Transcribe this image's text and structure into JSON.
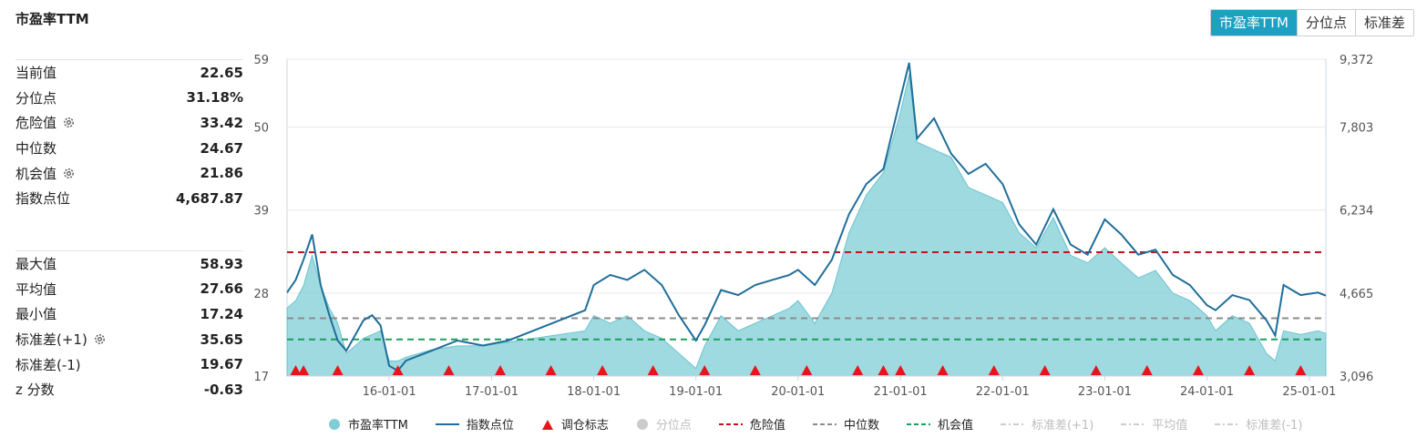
{
  "title": "市盈率TTM",
  "tabs": [
    {
      "label": "市盈率TTM",
      "active": true
    },
    {
      "label": "分位点",
      "active": false
    },
    {
      "label": "标准差",
      "active": false
    }
  ],
  "stats_top": [
    {
      "label": "当前值",
      "value": "22.65",
      "gear": false
    },
    {
      "label": "分位点",
      "value": "31.18%",
      "gear": false
    },
    {
      "label": "危险值",
      "value": "33.42",
      "gear": true
    },
    {
      "label": "中位数",
      "value": "24.67",
      "gear": false
    },
    {
      "label": "机会值",
      "value": "21.86",
      "gear": true
    },
    {
      "label": "指数点位",
      "value": "4,687.87",
      "gear": false
    }
  ],
  "stats_bottom": [
    {
      "label": "最大值",
      "value": "58.93",
      "gear": false
    },
    {
      "label": "平均值",
      "value": "27.66",
      "gear": false
    },
    {
      "label": "最小值",
      "value": "17.24",
      "gear": false
    },
    {
      "label": "标准差(+1)",
      "value": "35.65",
      "gear": true
    },
    {
      "label": "标准差(-1)",
      "value": "19.67",
      "gear": false
    },
    {
      "label": "z 分数",
      "value": "-0.63",
      "gear": false
    }
  ],
  "legend": [
    {
      "label": "市盈率TTM",
      "symbol": "dot",
      "color": "#7fcdd6",
      "dim": false
    },
    {
      "label": "指数点位",
      "symbol": "line",
      "color": "#1f6e99",
      "dim": false
    },
    {
      "label": "调仓标志",
      "symbol": "triangle",
      "color": "#e8141c",
      "dim": false
    },
    {
      "label": "分位点",
      "symbol": "dot",
      "color": "#cccccc",
      "dim": true
    },
    {
      "label": "危险值",
      "symbol": "dash",
      "color": "#c0141c",
      "dim": false
    },
    {
      "label": "中位数",
      "symbol": "dash",
      "color": "#8c8c8c",
      "dim": false
    },
    {
      "label": "机会值",
      "symbol": "dash",
      "color": "#1aa05a",
      "dim": false
    },
    {
      "label": "标准差(+1)",
      "symbol": "dashdot",
      "color": "#cccccc",
      "dim": true
    },
    {
      "label": "平均值",
      "symbol": "dashdot",
      "color": "#cccccc",
      "dim": true
    },
    {
      "label": "标准差(-1)",
      "symbol": "dashdot",
      "color": "#cccccc",
      "dim": true
    }
  ],
  "chart_data": {
    "type": "area",
    "x_range": [
      "2015-01-01",
      "2025-03-01"
    ],
    "x_ticks": [
      "16-01-01",
      "17-01-01",
      "18-01-01",
      "19-01-01",
      "20-01-01",
      "21-01-01",
      "22-01-01",
      "23-01-01",
      "24-01-01",
      "25-01-01"
    ],
    "y_left": {
      "min": 17,
      "max": 59,
      "ticks": [
        17,
        28,
        39,
        50,
        59
      ]
    },
    "y_right": {
      "min": 3096,
      "max": 9372,
      "ticks": [
        "3,096",
        "4,665",
        "6,234",
        "7,803",
        "9,372"
      ]
    },
    "reference_lines": [
      {
        "name": "危险值",
        "value": 33.42,
        "color": "#c0141c"
      },
      {
        "name": "中位数",
        "value": 24.67,
        "color": "#8c8c8c"
      },
      {
        "name": "机会值",
        "value": 21.86,
        "color": "#1aa05a"
      }
    ],
    "series": [
      {
        "name": "市盈率TTM",
        "axis": "left",
        "color": "#7fcdd6",
        "points": [
          [
            "2015-01-01",
            26
          ],
          [
            "2015-02-01",
            27
          ],
          [
            "2015-03-01",
            29
          ],
          [
            "2015-04-01",
            33
          ],
          [
            "2015-05-01",
            29
          ],
          [
            "2015-06-01",
            26
          ],
          [
            "2015-07-01",
            24
          ],
          [
            "2015-08-01",
            20
          ],
          [
            "2015-09-01",
            21
          ],
          [
            "2015-10-01",
            22
          ],
          [
            "2015-11-01",
            22.5
          ],
          [
            "2015-12-01",
            23
          ],
          [
            "2016-01-01",
            19
          ],
          [
            "2016-02-01",
            19
          ],
          [
            "2016-03-01",
            19.5
          ],
          [
            "2016-06-01",
            20.5
          ],
          [
            "2016-09-01",
            21
          ],
          [
            "2016-12-01",
            21
          ],
          [
            "2017-03-01",
            21.5
          ],
          [
            "2017-06-01",
            22
          ],
          [
            "2017-09-01",
            22.5
          ],
          [
            "2017-12-01",
            23
          ],
          [
            "2018-01-01",
            25
          ],
          [
            "2018-03-01",
            24
          ],
          [
            "2018-05-01",
            25
          ],
          [
            "2018-07-01",
            23
          ],
          [
            "2018-09-01",
            22
          ],
          [
            "2018-11-01",
            20
          ],
          [
            "2019-01-01",
            18
          ],
          [
            "2019-02-01",
            21
          ],
          [
            "2019-04-01",
            25
          ],
          [
            "2019-06-01",
            23
          ],
          [
            "2019-08-01",
            24
          ],
          [
            "2019-10-01",
            25
          ],
          [
            "2019-12-01",
            26
          ],
          [
            "2020-01-01",
            27
          ],
          [
            "2020-03-01",
            24
          ],
          [
            "2020-05-01",
            28
          ],
          [
            "2020-07-01",
            36
          ],
          [
            "2020-09-01",
            41
          ],
          [
            "2020-11-01",
            44
          ],
          [
            "2021-01-01",
            52
          ],
          [
            "2021-02-01",
            57
          ],
          [
            "2021-03-01",
            48
          ],
          [
            "2021-05-01",
            47
          ],
          [
            "2021-07-01",
            46
          ],
          [
            "2021-09-01",
            42
          ],
          [
            "2021-11-01",
            41
          ],
          [
            "2022-01-01",
            40
          ],
          [
            "2022-03-01",
            36
          ],
          [
            "2022-05-01",
            34
          ],
          [
            "2022-07-01",
            38
          ],
          [
            "2022-09-01",
            33
          ],
          [
            "2022-11-01",
            32
          ],
          [
            "2023-01-01",
            34
          ],
          [
            "2023-03-01",
            32
          ],
          [
            "2023-05-01",
            30
          ],
          [
            "2023-07-01",
            31
          ],
          [
            "2023-09-01",
            28
          ],
          [
            "2023-11-01",
            27
          ],
          [
            "2024-01-01",
            25
          ],
          [
            "2024-02-01",
            23
          ],
          [
            "2024-04-01",
            25
          ],
          [
            "2024-06-01",
            24
          ],
          [
            "2024-08-01",
            20
          ],
          [
            "2024-09-01",
            19
          ],
          [
            "2024-10-01",
            23
          ],
          [
            "2024-12-01",
            22.5
          ],
          [
            "2025-02-01",
            23
          ],
          [
            "2025-03-01",
            22.65
          ]
        ]
      },
      {
        "name": "指数点位",
        "axis": "right",
        "color": "#1f6e99",
        "points": [
          [
            "2015-01-01",
            4750
          ],
          [
            "2015-02-01",
            5000
          ],
          [
            "2015-03-01",
            5400
          ],
          [
            "2015-04-01",
            5900
          ],
          [
            "2015-05-01",
            4900
          ],
          [
            "2015-06-01",
            4300
          ],
          [
            "2015-07-01",
            3800
          ],
          [
            "2015-08-01",
            3600
          ],
          [
            "2015-09-01",
            3900
          ],
          [
            "2015-10-01",
            4200
          ],
          [
            "2015-11-01",
            4300
          ],
          [
            "2015-12-01",
            4100
          ],
          [
            "2016-01-01",
            3300
          ],
          [
            "2016-02-01",
            3200
          ],
          [
            "2016-03-01",
            3400
          ],
          [
            "2016-06-01",
            3600
          ],
          [
            "2016-09-01",
            3800
          ],
          [
            "2016-12-01",
            3700
          ],
          [
            "2017-03-01",
            3800
          ],
          [
            "2017-06-01",
            4000
          ],
          [
            "2017-09-01",
            4200
          ],
          [
            "2017-12-01",
            4400
          ],
          [
            "2018-01-01",
            4900
          ],
          [
            "2018-03-01",
            5100
          ],
          [
            "2018-05-01",
            5000
          ],
          [
            "2018-07-01",
            5200
          ],
          [
            "2018-09-01",
            4900
          ],
          [
            "2018-11-01",
            4300
          ],
          [
            "2019-01-01",
            3800
          ],
          [
            "2019-02-01",
            4100
          ],
          [
            "2019-04-01",
            4800
          ],
          [
            "2019-06-01",
            4700
          ],
          [
            "2019-08-01",
            4900
          ],
          [
            "2019-10-01",
            5000
          ],
          [
            "2019-12-01",
            5100
          ],
          [
            "2020-01-01",
            5200
          ],
          [
            "2020-03-01",
            4900
          ],
          [
            "2020-05-01",
            5400
          ],
          [
            "2020-07-01",
            6300
          ],
          [
            "2020-09-01",
            6900
          ],
          [
            "2020-11-01",
            7200
          ],
          [
            "2021-01-01",
            8600
          ],
          [
            "2021-02-01",
            9300
          ],
          [
            "2021-03-01",
            7800
          ],
          [
            "2021-05-01",
            8200
          ],
          [
            "2021-07-01",
            7500
          ],
          [
            "2021-09-01",
            7100
          ],
          [
            "2021-11-01",
            7300
          ],
          [
            "2022-01-01",
            6900
          ],
          [
            "2022-03-01",
            6100
          ],
          [
            "2022-05-01",
            5700
          ],
          [
            "2022-07-01",
            6400
          ],
          [
            "2022-09-01",
            5700
          ],
          [
            "2022-11-01",
            5500
          ],
          [
            "2023-01-01",
            6200
          ],
          [
            "2023-03-01",
            5900
          ],
          [
            "2023-05-01",
            5500
          ],
          [
            "2023-07-01",
            5600
          ],
          [
            "2023-09-01",
            5100
          ],
          [
            "2023-11-01",
            4900
          ],
          [
            "2024-01-01",
            4500
          ],
          [
            "2024-02-01",
            4400
          ],
          [
            "2024-04-01",
            4700
          ],
          [
            "2024-06-01",
            4600
          ],
          [
            "2024-08-01",
            4200
          ],
          [
            "2024-09-01",
            3900
          ],
          [
            "2024-10-01",
            4900
          ],
          [
            "2024-12-01",
            4700
          ],
          [
            "2025-02-01",
            4750
          ],
          [
            "2025-03-01",
            4688
          ]
        ]
      }
    ],
    "rebalance_markers": [
      "2015-02-01",
      "2015-03-01",
      "2015-07-01",
      "2016-02-01",
      "2016-08-01",
      "2017-02-01",
      "2017-08-01",
      "2018-02-01",
      "2018-08-01",
      "2019-02-01",
      "2019-08-01",
      "2020-02-01",
      "2020-08-01",
      "2020-11-01",
      "2021-01-01",
      "2021-06-01",
      "2021-12-01",
      "2022-06-01",
      "2022-12-01",
      "2023-06-01",
      "2023-12-01",
      "2024-06-01",
      "2024-12-01"
    ]
  }
}
